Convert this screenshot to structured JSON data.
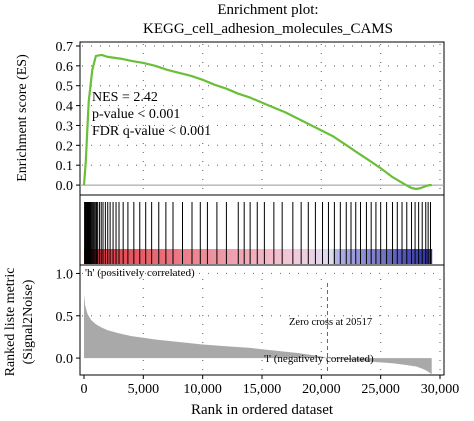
{
  "title_line1": "Enrichment plot:",
  "title_line2": "KEGG_cell_adhesion_molecules_CAMS",
  "stats": {
    "nes": "NES = 2.42",
    "pvalue": "p-value < 0.001",
    "fdr": "FDR q-value < 0.001"
  },
  "labels": {
    "pos_corr": "'h' (positively correlated)",
    "neg_corr": "'l' (negatively correlated)",
    "zero_cross": "Zero cross at 20517"
  },
  "colors": {
    "es_line": "#6abf3a",
    "heat_red": "#e0313a",
    "heat_pink": "#f0b8c8",
    "heat_blue": "#2b2fa0",
    "metric_fill": "#a9a9a9",
    "pos_label": "#e0313a",
    "neg_label": "#3a3ab0"
  },
  "chart_data": {
    "type": "line",
    "xlabel": "Rank in ordered dataset",
    "xlim": [
      0,
      30000
    ],
    "x_ticks": [
      "0",
      "5,000",
      "10,000",
      "15,000",
      "20,000",
      "25,000",
      "30,000"
    ],
    "x_tick_values": [
      0,
      5000,
      10000,
      15000,
      20000,
      25000,
      30000
    ],
    "es_panel": {
      "ylabel": "Enrichment score (ES)",
      "ylim": [
        -0.05,
        0.72
      ],
      "y_ticks": [
        "0.7",
        "0.6",
        "0.5",
        "0.4",
        "0.3",
        "0.2",
        "0.1",
        "0.0"
      ],
      "y_tick_values": [
        0.7,
        0.6,
        0.5,
        0.4,
        0.3,
        0.2,
        0.1,
        0.0
      ],
      "es_curve": {
        "x": [
          0,
          150,
          400,
          700,
          1000,
          1500,
          2000,
          2600,
          3200,
          4000,
          5000,
          6000,
          7000,
          8000,
          9000,
          10000,
          11000,
          12000,
          13000,
          14000,
          15000,
          16000,
          17000,
          18000,
          19000,
          20000,
          21000,
          22000,
          23000,
          24000,
          25000,
          26000,
          27000,
          27600,
          28000,
          28400,
          28800,
          29100,
          29300
        ],
        "y": [
          0.0,
          0.12,
          0.42,
          0.58,
          0.65,
          0.655,
          0.645,
          0.64,
          0.635,
          0.625,
          0.615,
          0.6,
          0.58,
          0.565,
          0.55,
          0.53,
          0.505,
          0.485,
          0.46,
          0.44,
          0.415,
          0.39,
          0.365,
          0.335,
          0.305,
          0.275,
          0.245,
          0.205,
          0.165,
          0.125,
          0.085,
          0.04,
          0.005,
          -0.015,
          -0.02,
          -0.015,
          -0.005,
          0.0,
          0.0
        ]
      }
    },
    "hits_panel": {
      "hit_ranks": [
        50,
        100,
        150,
        200,
        260,
        320,
        380,
        440,
        500,
        560,
        620,
        700,
        780,
        860,
        950,
        1050,
        1150,
        1300,
        1450,
        1600,
        1800,
        2000,
        2200,
        2450,
        2700,
        2950,
        3300,
        3700,
        4200,
        4700,
        5200,
        5700,
        6300,
        6900,
        7500,
        8300,
        9100,
        9800,
        10400,
        11200,
        12000,
        13000,
        13500,
        14000,
        14600,
        15200,
        16000,
        16700,
        17600,
        18300,
        18900,
        19500,
        20100,
        20600,
        21100,
        21600,
        22100,
        22500,
        22900,
        23300,
        23800,
        24200,
        24600,
        25000,
        25500,
        26000,
        26400,
        26800,
        27200,
        27600,
        27900,
        28200,
        28500,
        28800,
        29000,
        29200
      ],
      "heatmap_segments": [
        {
          "x0": 0,
          "x1": 10000,
          "color_start": "#e0313a",
          "color_end": "#ec8c98"
        },
        {
          "x0": 10000,
          "x1": 17500,
          "color_start": "#ec8c98",
          "color_end": "#f4c8d8"
        },
        {
          "x0": 17500,
          "x1": 21000,
          "color_start": "#f4c8d8",
          "color_end": "#dcdcf4"
        },
        {
          "x0": 21000,
          "x1": 29300,
          "color_start": "#b8b8e8",
          "color_end": "#2b2fa0"
        }
      ]
    },
    "metric_panel": {
      "ylabel_line1": "Ranked liste metric",
      "ylabel_line2": "(Signal2Noise)",
      "ylim": [
        -0.2,
        1.1
      ],
      "y_ticks": [
        "1.0",
        "0.5",
        "0.0"
      ],
      "y_tick_values": [
        1.0,
        0.5,
        0.0
      ],
      "zero_cross_rank": 20517,
      "metric": {
        "x": [
          0,
          100,
          300,
          600,
          1000,
          1500,
          2000,
          3000,
          4000,
          5000,
          6000,
          8000,
          10000,
          12000,
          14000,
          16000,
          18000,
          20000,
          20517,
          22000,
          24000,
          26000,
          27000,
          28000,
          28600,
          29000,
          29300
        ],
        "y": [
          0.75,
          0.62,
          0.52,
          0.45,
          0.4,
          0.36,
          0.33,
          0.29,
          0.26,
          0.24,
          0.22,
          0.19,
          0.16,
          0.14,
          0.12,
          0.09,
          0.06,
          0.02,
          0.0,
          -0.02,
          -0.04,
          -0.06,
          -0.08,
          -0.1,
          -0.13,
          -0.16,
          -0.19
        ]
      }
    }
  }
}
